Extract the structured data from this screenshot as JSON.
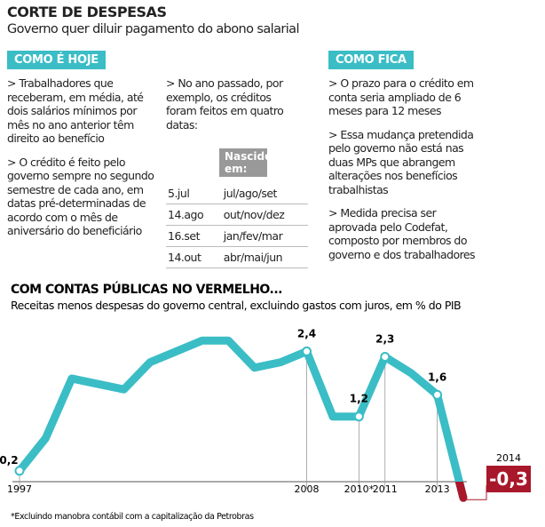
{
  "header": {
    "title": "CORTE DE DESPESAS",
    "subtitle": "Governo quer diluir pagamento do abono salarial"
  },
  "today": {
    "label": "COMO É HOJE",
    "bullets": [
      "> Trabalhadores que receberam, em média, até dois salários mínimos por mês no ano anterior têm direito ao benefício",
      "> O crédito é feito pelo governo sempre no segundo semestre de cada ano, em datas pré-determinadas de acordo com o mês de aniversário do beneficiário"
    ],
    "note": "> No ano passado, por exemplo, os créditos foram feitos em quatro datas:",
    "table": {
      "header": "Nascidos em:",
      "rows": [
        [
          "5.jul",
          "jul/ago/set"
        ],
        [
          "14.ago",
          "out/nov/dez"
        ],
        [
          "16.set",
          "jan/fev/mar"
        ],
        [
          "14.out",
          "abr/mai/jun"
        ]
      ]
    }
  },
  "future": {
    "label": "COMO FICA",
    "bullets": [
      "> O prazo para o crédito em conta seria ampliado de 6 meses para 12 meses",
      "> Essa mudança pretendida pelo governo não está nas duas MPs que abrangem alterações nos benefícios trabalhistas",
      "> Medida precisa ser aprovada pelo Codefat, composto por membros do governo e dos trabalhadores"
    ]
  },
  "chart_data": {
    "type": "line",
    "title": "COM CONTAS PÚBLICAS NO VERMELHO...",
    "subtitle": "Receitas menos despesas do governo central, excluindo gastos com juros, em % do PIB",
    "categories": [
      "1997",
      null,
      null,
      null,
      null,
      null,
      null,
      null,
      null,
      null,
      null,
      "2008",
      null,
      "2010*",
      "2011",
      null,
      "2013",
      "2014"
    ],
    "values": [
      0.2,
      0.8,
      1.9,
      1.8,
      1.7,
      2.2,
      2.4,
      2.6,
      2.6,
      2.1,
      2.2,
      2.4,
      1.2,
      1.2,
      2.3,
      2.0,
      1.6,
      -0.3
    ],
    "value_labels": [
      "0,2",
      null,
      null,
      null,
      null,
      null,
      null,
      null,
      null,
      null,
      null,
      "2,4",
      null,
      "1,2",
      "2,3",
      null,
      "1,6",
      "-0,3"
    ],
    "color": "#3bbdc6",
    "negative_color": "#a8182a",
    "ylim": [
      -0.5,
      2.8
    ],
    "footnote": "*Excluindo manobra contábil com a capitalização da Petrobras"
  }
}
